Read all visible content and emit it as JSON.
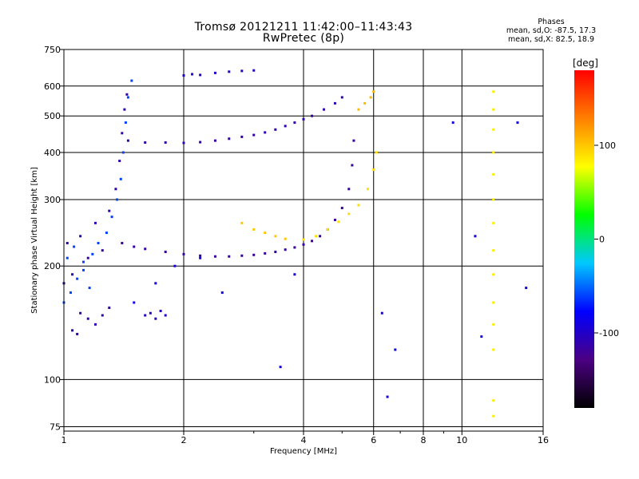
{
  "header": {
    "title": "Tromsø 20121211 11:42:00–11:43:43",
    "subtitle": "RwPretec (8p)"
  },
  "stats": {
    "title": "Phases",
    "line_o": "mean, sd,O: -87.5, 17.3",
    "line_x": "mean, sd,X:  82.5, 18.9"
  },
  "chart_data": {
    "type": "scatter",
    "title": "Tromsø 20121211 11:42:00–11:43:43",
    "subtitle": "RwPretec (8p)",
    "xlabel": "Frequency [MHz]",
    "ylabel": "Stationary phase Virtual Height [km]",
    "x_scale": "log",
    "y_scale": "log",
    "xlim": [
      1,
      16
    ],
    "ylim": [
      73,
      750
    ],
    "x_ticks": [
      1,
      2,
      4,
      6,
      8,
      10,
      16
    ],
    "x_tick_labels": [
      "1",
      "2",
      "4",
      "6",
      "8",
      "10",
      "16"
    ],
    "x_minor_ticks": [
      3,
      5,
      7,
      9
    ],
    "y_ticks": [
      75,
      100,
      200,
      300,
      400,
      500,
      600,
      750
    ],
    "y_tick_labels": [
      "75",
      "100",
      "200",
      "300",
      "400",
      "500",
      "600",
      "750"
    ],
    "grid": true,
    "colorbar": {
      "label": "[deg]",
      "min": -180,
      "max": 180,
      "ticks": [
        100,
        0,
        -100
      ],
      "tick_labels": [
        "100",
        "0",
        "-100"
      ],
      "colors": [
        "#000000",
        "#4b0082",
        "#0000ff",
        "#00c8ff",
        "#00ff00",
        "#ffff00",
        "#ff8000",
        "#ff0000"
      ]
    },
    "series": [
      {
        "values": [
          [
            1.0,
            180
          ],
          [
            1.02,
            230
          ],
          [
            1.05,
            190
          ],
          [
            1.1,
            240
          ],
          [
            1.15,
            210
          ],
          [
            1.2,
            260
          ],
          [
            1.25,
            220
          ],
          [
            1.3,
            280
          ],
          [
            1.35,
            320
          ],
          [
            1.38,
            380
          ],
          [
            1.4,
            450
          ],
          [
            1.42,
            520
          ],
          [
            1.44,
            570
          ],
          [
            1.1,
            150
          ],
          [
            1.15,
            145
          ],
          [
            1.2,
            140
          ],
          [
            1.25,
            148
          ],
          [
            1.3,
            155
          ],
          [
            1.05,
            135
          ],
          [
            1.08,
            132
          ]
        ],
        "phase": -110
      },
      {
        "values": [
          [
            1.02,
            210
          ],
          [
            1.06,
            225
          ],
          [
            1.12,
            205
          ],
          [
            1.18,
            215
          ],
          [
            1.22,
            230
          ],
          [
            1.28,
            245
          ],
          [
            1.32,
            270
          ],
          [
            1.36,
            300
          ],
          [
            1.39,
            340
          ],
          [
            1.41,
            400
          ],
          [
            1.43,
            480
          ],
          [
            1.45,
            560
          ],
          [
            1.48,
            620
          ],
          [
            1.0,
            160
          ],
          [
            1.04,
            170
          ],
          [
            1.08,
            185
          ],
          [
            1.12,
            195
          ],
          [
            1.16,
            175
          ]
        ],
        "phase": -60
      },
      {
        "values": [
          [
            1.4,
            230
          ],
          [
            1.5,
            225
          ],
          [
            1.6,
            222
          ],
          [
            1.8,
            218
          ],
          [
            2.0,
            215
          ],
          [
            2.2,
            213
          ],
          [
            2.4,
            212
          ],
          [
            2.6,
            212
          ],
          [
            2.8,
            213
          ],
          [
            3.0,
            214
          ],
          [
            3.2,
            216
          ],
          [
            3.4,
            218
          ],
          [
            3.6,
            221
          ],
          [
            3.8,
            224
          ],
          [
            4.0,
            228
          ],
          [
            4.2,
            233
          ],
          [
            4.4,
            240
          ],
          [
            4.6,
            250
          ],
          [
            4.8,
            265
          ],
          [
            5.0,
            285
          ],
          [
            5.2,
            320
          ],
          [
            5.3,
            370
          ],
          [
            5.35,
            430
          ]
        ],
        "phase": -115
      },
      {
        "values": [
          [
            1.45,
            430
          ],
          [
            1.6,
            425
          ],
          [
            1.8,
            425
          ],
          [
            2.0,
            424
          ],
          [
            2.2,
            426
          ],
          [
            2.4,
            430
          ],
          [
            2.6,
            435
          ],
          [
            2.8,
            440
          ],
          [
            3.0,
            445
          ],
          [
            3.2,
            452
          ],
          [
            3.4,
            460
          ],
          [
            3.6,
            470
          ],
          [
            3.8,
            480
          ],
          [
            4.0,
            490
          ],
          [
            4.2,
            500
          ],
          [
            4.5,
            520
          ],
          [
            4.8,
            540
          ],
          [
            5.0,
            560
          ]
        ],
        "phase": -110
      },
      {
        "values": [
          [
            1.6,
            148
          ],
          [
            1.65,
            150
          ],
          [
            1.7,
            145
          ],
          [
            1.75,
            152
          ],
          [
            1.8,
            148
          ]
        ],
        "phase": -105
      },
      {
        "values": [
          [
            2.0,
            640
          ],
          [
            2.1,
            645
          ],
          [
            2.2,
            642
          ],
          [
            2.4,
            650
          ],
          [
            2.6,
            655
          ],
          [
            2.8,
            658
          ],
          [
            3.0,
            660
          ]
        ],
        "phase": -100
      },
      {
        "values": [
          [
            2.8,
            260
          ],
          [
            3.0,
            250
          ],
          [
            3.2,
            245
          ],
          [
            3.4,
            240
          ],
          [
            3.6,
            236
          ]
        ],
        "phase": 100
      },
      {
        "values": [
          [
            4.0,
            235
          ],
          [
            4.3,
            240
          ],
          [
            4.6,
            250
          ],
          [
            4.9,
            262
          ],
          [
            5.2,
            275
          ],
          [
            5.5,
            290
          ],
          [
            5.8,
            320
          ],
          [
            6.0,
            360
          ],
          [
            6.1,
            400
          ]
        ],
        "phase": 90
      },
      {
        "values": [
          [
            5.5,
            520
          ],
          [
            5.7,
            540
          ],
          [
            5.9,
            560
          ],
          [
            6.0,
            580
          ]
        ],
        "phase": 105
      },
      {
        "values": [
          [
            12.0,
            580
          ],
          [
            12.0,
            520
          ],
          [
            12.0,
            460
          ],
          [
            12.0,
            400
          ],
          [
            12.0,
            350
          ],
          [
            12.0,
            300
          ],
          [
            12.0,
            260
          ],
          [
            12.0,
            220
          ],
          [
            12.0,
            190
          ],
          [
            12.0,
            160
          ],
          [
            12.0,
            140
          ],
          [
            12.0,
            120
          ],
          [
            12.0,
            88
          ],
          [
            12.0,
            80
          ]
        ],
        "phase": 85
      },
      {
        "values": [
          [
            1.5,
            160
          ],
          [
            1.7,
            180
          ],
          [
            2.5,
            170
          ],
          [
            3.8,
            190
          ],
          [
            6.3,
            150
          ],
          [
            6.5,
            90
          ],
          [
            6.8,
            120
          ],
          [
            10.8,
            240
          ],
          [
            11.2,
            130
          ],
          [
            13.8,
            480
          ],
          [
            14.5,
            175
          ],
          [
            2.2,
            210
          ],
          [
            1.9,
            200
          ],
          [
            3.5,
            108
          ],
          [
            9.5,
            480
          ]
        ],
        "phase": -90
      }
    ]
  }
}
